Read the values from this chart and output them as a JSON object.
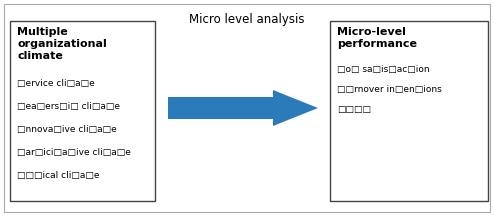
{
  "title": "Micro level analysis",
  "title_fontsize": 8.5,
  "arrow_color": "#2b7bba",
  "left_box_title": "Multiple\norganizational\nclimate",
  "left_box_items": [
    "□ervice cli□a□e",
    "□ea□ers□i□ cli□a□e",
    "□nnova□ive cli□a□e",
    "□ar□ici□a□ive cli□a□e",
    "□□□ical cli□a□e"
  ],
  "right_box_title": "Micro-level\nperformance",
  "right_box_items": [
    "□o□ sa□is□ac□ion",
    "□□rnover in□en□ions",
    "□□□□"
  ],
  "bg_color": "#ffffff",
  "fig_width": 4.94,
  "fig_height": 2.16,
  "dpi": 100
}
